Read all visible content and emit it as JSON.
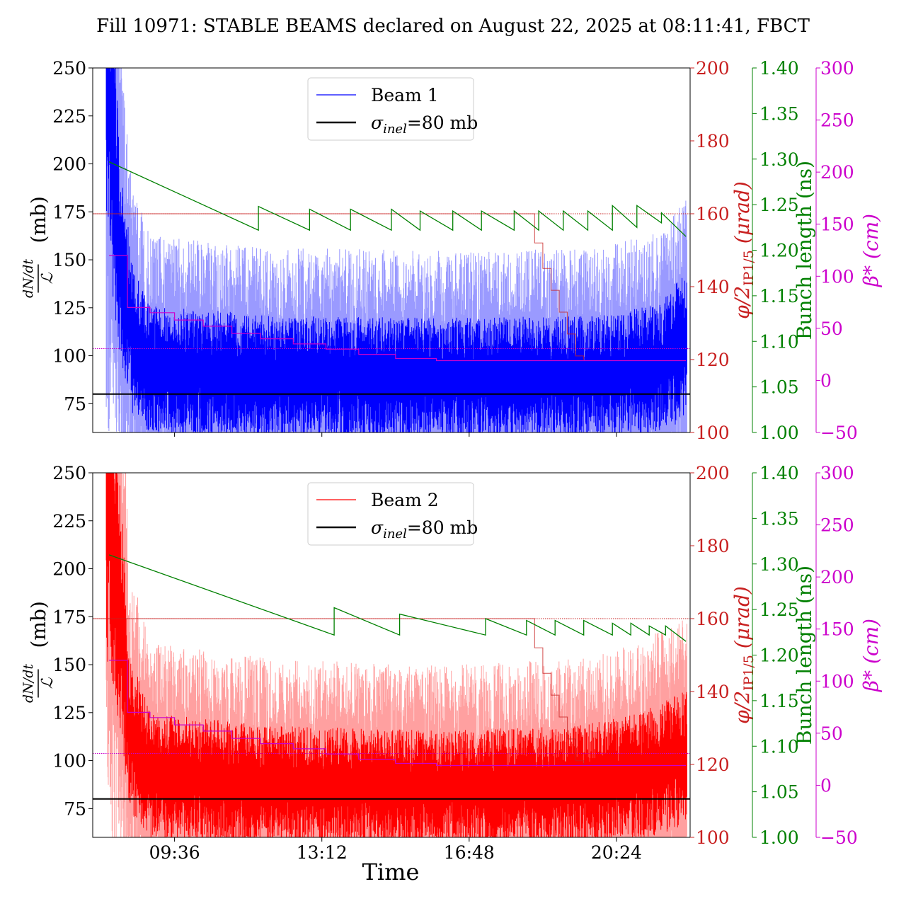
{
  "figure": {
    "title": "Fill 10971: STABLE BEAMS declared on August 22, 2025 at 08:11:41, FBCT",
    "xlabel": "Time",
    "xticks": [
      "09:36",
      "13:12",
      "16:48",
      "20:24"
    ]
  },
  "colors": {
    "beam1": "#0000ff",
    "beam1_light": "#9a9aff",
    "beam2": "#ff0000",
    "beam2_light": "#ffa0a0",
    "crossing": "#c82020",
    "bunch": "#008000",
    "betastar": "#cc00cc",
    "sigma": "#000000"
  },
  "axes_labels": {
    "left_numerator": "dN/dt",
    "left_denominator": "ℒ",
    "left_unit": "(mb)",
    "crossing": "φ/2",
    "crossing_sub": "IP1/5",
    "crossing_unit": "(μrad)",
    "bunch": "Bunch length (ns)",
    "betastar": "β*",
    "betastar_unit": "(cm)"
  },
  "chart_data": [
    {
      "type": "line",
      "panel": "top",
      "legend": {
        "beam": "Beam 1",
        "sigma": "σ",
        "sigma_sub": "inel",
        "sigma_value": "=80 mb",
        "placement": "top-center"
      },
      "x_range_hours": [
        7.6,
        22.2
      ],
      "ylim": [
        60,
        250
      ],
      "yticks": [
        75,
        100,
        125,
        150,
        175,
        200,
        225,
        250
      ],
      "crossing_ylim": [
        100,
        200
      ],
      "crossing_ticks": [
        100,
        120,
        140,
        160,
        180,
        200
      ],
      "bunch_ylim": [
        1.0,
        1.4
      ],
      "bunch_ticks": [
        "1.00",
        "1.05",
        "1.10",
        "1.15",
        "1.20",
        "1.25",
        "1.30",
        "1.35",
        "1.40"
      ],
      "betastar_ylim": [
        -50,
        300
      ],
      "betastar_ticks": [
        "−50",
        "0",
        "50",
        "100",
        "150",
        "200",
        "250",
        "300"
      ],
      "sigma_inel": 80,
      "cross_section_baseline": [
        {
          "t": 8.0,
          "v": 240
        },
        {
          "t": 8.3,
          "v": 150
        },
        {
          "t": 8.6,
          "v": 110
        },
        {
          "t": 9.0,
          "v": 96
        },
        {
          "t": 12.0,
          "v": 92
        },
        {
          "t": 16.0,
          "v": 91
        },
        {
          "t": 20.0,
          "v": 92
        },
        {
          "t": 21.5,
          "v": 97
        },
        {
          "t": 22.1,
          "v": 110
        }
      ],
      "crossing_angle": [
        {
          "t": 7.6,
          "v": 160
        },
        {
          "t": 18.2,
          "v": 160
        },
        {
          "t": 18.4,
          "v": 152
        },
        {
          "t": 18.6,
          "v": 145
        },
        {
          "t": 18.8,
          "v": 139
        },
        {
          "t": 19.0,
          "v": 133
        },
        {
          "t": 19.2,
          "v": 127
        },
        {
          "t": 19.4,
          "v": 121
        },
        {
          "t": 19.6,
          "v": 120
        }
      ],
      "crossing_reference": 160,
      "crossing_reference2": 123,
      "betastar": [
        {
          "t": 8.0,
          "v": 120
        },
        {
          "t": 8.35,
          "v": 120
        },
        {
          "t": 8.45,
          "v": 70
        },
        {
          "t": 9.0,
          "v": 65
        },
        {
          "t": 9.6,
          "v": 58
        },
        {
          "t": 10.3,
          "v": 52
        },
        {
          "t": 11.0,
          "v": 45
        },
        {
          "t": 11.7,
          "v": 40
        },
        {
          "t": 12.5,
          "v": 35
        },
        {
          "t": 13.3,
          "v": 30
        },
        {
          "t": 14.1,
          "v": 25
        },
        {
          "t": 15.0,
          "v": 21
        },
        {
          "t": 16.0,
          "v": 19
        },
        {
          "t": 22.1,
          "v": 19
        }
      ],
      "bunch_length": [
        {
          "t": 8.0,
          "v": 1.297
        },
        {
          "t": 11.65,
          "v": 1.222
        },
        {
          "t": 11.65,
          "v": 1.248
        },
        {
          "t": 12.9,
          "v": 1.222
        },
        {
          "t": 12.9,
          "v": 1.245
        },
        {
          "t": 13.9,
          "v": 1.222
        },
        {
          "t": 13.9,
          "v": 1.245
        },
        {
          "t": 14.9,
          "v": 1.222
        },
        {
          "t": 14.9,
          "v": 1.245
        },
        {
          "t": 15.6,
          "v": 1.222
        },
        {
          "t": 15.6,
          "v": 1.243
        },
        {
          "t": 16.4,
          "v": 1.222
        },
        {
          "t": 16.4,
          "v": 1.243
        },
        {
          "t": 17.1,
          "v": 1.222
        },
        {
          "t": 17.1,
          "v": 1.243
        },
        {
          "t": 17.9,
          "v": 1.222
        },
        {
          "t": 17.9,
          "v": 1.243
        },
        {
          "t": 18.5,
          "v": 1.222
        },
        {
          "t": 18.5,
          "v": 1.243
        },
        {
          "t": 19.1,
          "v": 1.222
        },
        {
          "t": 19.1,
          "v": 1.243
        },
        {
          "t": 19.7,
          "v": 1.222
        },
        {
          "t": 19.7,
          "v": 1.243
        },
        {
          "t": 20.3,
          "v": 1.222
        },
        {
          "t": 20.3,
          "v": 1.249
        },
        {
          "t": 20.9,
          "v": 1.225
        },
        {
          "t": 20.9,
          "v": 1.249
        },
        {
          "t": 21.5,
          "v": 1.23
        },
        {
          "t": 21.5,
          "v": 1.241
        },
        {
          "t": 22.1,
          "v": 1.215
        }
      ]
    },
    {
      "type": "line",
      "panel": "bottom",
      "legend": {
        "beam": "Beam 2",
        "sigma": "σ",
        "sigma_sub": "inel",
        "sigma_value": "=80 mb",
        "placement": "top-center"
      },
      "x_range_hours": [
        7.6,
        22.2
      ],
      "ylim": [
        60,
        250
      ],
      "yticks": [
        75,
        100,
        125,
        150,
        175,
        200,
        225,
        250
      ],
      "crossing_ylim": [
        100,
        200
      ],
      "crossing_ticks": [
        100,
        120,
        140,
        160,
        180,
        200
      ],
      "bunch_ylim": [
        1.0,
        1.4
      ],
      "bunch_ticks": [
        "1.00",
        "1.05",
        "1.10",
        "1.15",
        "1.20",
        "1.25",
        "1.30",
        "1.35",
        "1.40"
      ],
      "betastar_ylim": [
        -50,
        300
      ],
      "betastar_ticks": [
        "−50",
        "0",
        "50",
        "100",
        "150",
        "200",
        "250",
        "300"
      ],
      "sigma_inel": 80,
      "cross_section_baseline": [
        {
          "t": 8.0,
          "v": 245
        },
        {
          "t": 8.3,
          "v": 180
        },
        {
          "t": 8.5,
          "v": 120
        },
        {
          "t": 9.0,
          "v": 95
        },
        {
          "t": 12.0,
          "v": 90
        },
        {
          "t": 16.0,
          "v": 88
        },
        {
          "t": 19.5,
          "v": 90
        },
        {
          "t": 21.0,
          "v": 95
        },
        {
          "t": 22.1,
          "v": 105
        }
      ],
      "crossing_angle": [
        {
          "t": 7.6,
          "v": 160
        },
        {
          "t": 18.2,
          "v": 160
        },
        {
          "t": 18.4,
          "v": 152
        },
        {
          "t": 18.6,
          "v": 145
        },
        {
          "t": 18.8,
          "v": 139
        },
        {
          "t": 19.0,
          "v": 133
        },
        {
          "t": 19.2,
          "v": 127
        },
        {
          "t": 19.4,
          "v": 121
        },
        {
          "t": 19.6,
          "v": 120
        }
      ],
      "crossing_reference": 160,
      "crossing_reference2": 123,
      "betastar": [
        {
          "t": 8.0,
          "v": 120
        },
        {
          "t": 8.35,
          "v": 120
        },
        {
          "t": 8.45,
          "v": 70
        },
        {
          "t": 9.0,
          "v": 65
        },
        {
          "t": 9.6,
          "v": 58
        },
        {
          "t": 10.3,
          "v": 52
        },
        {
          "t": 11.0,
          "v": 45
        },
        {
          "t": 11.7,
          "v": 40
        },
        {
          "t": 12.5,
          "v": 35
        },
        {
          "t": 13.3,
          "v": 30
        },
        {
          "t": 14.1,
          "v": 25
        },
        {
          "t": 15.0,
          "v": 21
        },
        {
          "t": 16.0,
          "v": 19
        },
        {
          "t": 22.1,
          "v": 19
        }
      ],
      "bunch_length": [
        {
          "t": 8.0,
          "v": 1.31
        },
        {
          "t": 13.5,
          "v": 1.222
        },
        {
          "t": 13.5,
          "v": 1.252
        },
        {
          "t": 15.1,
          "v": 1.222
        },
        {
          "t": 15.1,
          "v": 1.245
        },
        {
          "t": 17.2,
          "v": 1.222
        },
        {
          "t": 17.2,
          "v": 1.24
        },
        {
          "t": 18.2,
          "v": 1.222
        },
        {
          "t": 18.2,
          "v": 1.238
        },
        {
          "t": 18.9,
          "v": 1.222
        },
        {
          "t": 18.9,
          "v": 1.238
        },
        {
          "t": 19.6,
          "v": 1.222
        },
        {
          "t": 19.6,
          "v": 1.238
        },
        {
          "t": 20.3,
          "v": 1.222
        },
        {
          "t": 20.3,
          "v": 1.235
        },
        {
          "t": 20.75,
          "v": 1.222
        },
        {
          "t": 20.75,
          "v": 1.235
        },
        {
          "t": 21.2,
          "v": 1.222
        },
        {
          "t": 21.2,
          "v": 1.232
        },
        {
          "t": 21.6,
          "v": 1.222
        },
        {
          "t": 21.6,
          "v": 1.232
        },
        {
          "t": 22.1,
          "v": 1.215
        }
      ]
    }
  ]
}
